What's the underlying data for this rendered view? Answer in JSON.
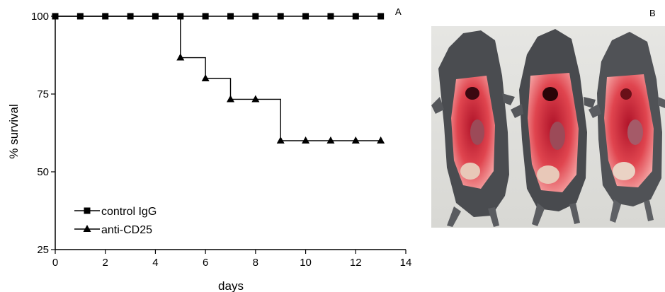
{
  "panel_a_label": "A",
  "panel_b_label": "B",
  "photo_description": "",
  "chart_data": {
    "type": "line",
    "step": true,
    "title": "",
    "xlabel": "days",
    "ylabel": "% survival",
    "xlim": [
      0,
      14
    ],
    "ylim": [
      25,
      100
    ],
    "xticks": [
      0,
      2,
      4,
      6,
      8,
      10,
      12,
      14
    ],
    "yticks": [
      25,
      50,
      75,
      100
    ],
    "grid": false,
    "legend_position": "bottom-left",
    "series": [
      {
        "name": "control IgG",
        "marker": "square",
        "color": "#000000",
        "x": [
          0,
          1,
          2,
          3,
          4,
          5,
          6,
          7,
          8,
          9,
          10,
          11,
          12,
          13
        ],
        "y": [
          100,
          100,
          100,
          100,
          100,
          100,
          100,
          100,
          100,
          100,
          100,
          100,
          100,
          100
        ]
      },
      {
        "name": "anti-CD25",
        "marker": "triangle",
        "color": "#000000",
        "x": [
          5,
          6,
          7,
          8,
          9,
          10,
          11,
          12,
          13
        ],
        "y": [
          86.7,
          80,
          73.3,
          73.3,
          60,
          60,
          60,
          60,
          60
        ],
        "step_start": [
          0,
          100
        ]
      }
    ]
  }
}
